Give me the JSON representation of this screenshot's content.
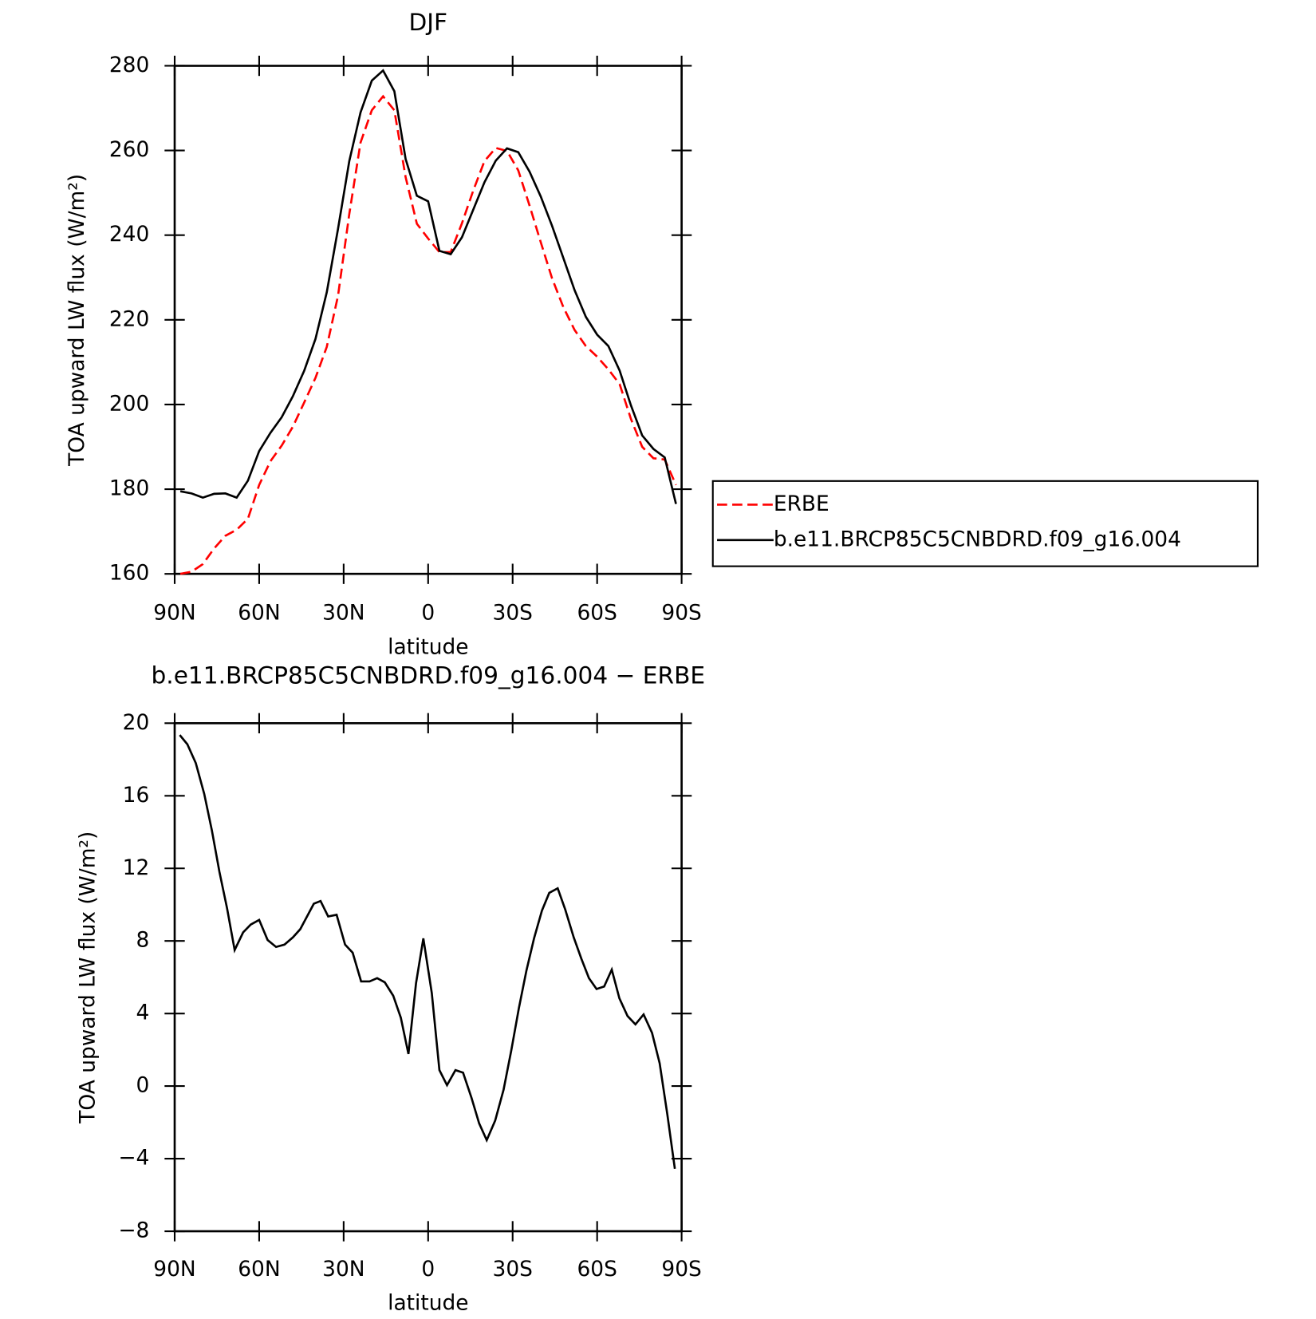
{
  "chart_data": [
    {
      "type": "line",
      "title": "DJF",
      "x_label": "latitude",
      "y_label": "TOA upward LW flux (W/m²)",
      "x": [
        88,
        84,
        80,
        76,
        72,
        68,
        64,
        60,
        56,
        52,
        48,
        44,
        40,
        36,
        32,
        28,
        24,
        20,
        16,
        12,
        8,
        4,
        0,
        -4,
        -8,
        -12,
        -16,
        -20,
        -24,
        -28,
        -32,
        -36,
        -40,
        -44,
        -48,
        -52,
        -56,
        -60,
        -64,
        -68,
        -72,
        -76,
        -80,
        -84,
        -88
      ],
      "series": [
        {
          "name": "ERBE",
          "color": "#ff0000",
          "line_style": "dashed",
          "values": [
            160,
            160.5,
            162.3,
            166,
            169,
            170.4,
            173,
            181,
            186.6,
            190.3,
            194.8,
            200.5,
            206.3,
            213.6,
            225.7,
            245,
            261.9,
            269.5,
            272.8,
            269.5,
            253.7,
            242.7,
            239.2,
            236,
            236,
            242.8,
            250.5,
            257.5,
            260.6,
            259.9,
            255.3,
            247,
            238.3,
            229.8,
            223,
            217.6,
            213.8,
            211.3,
            208.3,
            204.8,
            196.6,
            190,
            187.3,
            187,
            181
          ]
        },
        {
          "name": "b.e11.BRCP85C5CNBDRD.f09_g16.004",
          "color": "#000000",
          "line_style": "solid",
          "values": [
            179.5,
            179,
            178,
            178.9,
            179,
            178,
            182,
            189,
            193.3,
            197,
            202,
            208,
            215.5,
            226.5,
            241.5,
            257.5,
            269,
            276.5,
            278.9,
            274,
            258,
            249.3,
            248,
            236.3,
            235.5,
            239.5,
            246,
            252.5,
            257.6,
            260.5,
            259.6,
            255,
            249.1,
            242.2,
            234.6,
            227,
            220.7,
            216.5,
            213.8,
            208,
            199.8,
            192.7,
            189.5,
            187.5,
            176.5
          ]
        }
      ],
      "xlim": [
        90,
        -90
      ],
      "xticks": [
        {
          "value": 90,
          "label": "90N"
        },
        {
          "value": 60,
          "label": "60N"
        },
        {
          "value": 30,
          "label": "30N"
        },
        0,
        {
          "value": -30,
          "label": "30S"
        },
        {
          "value": -60,
          "label": "60S"
        },
        {
          "value": -90,
          "label": "90S"
        }
      ],
      "ylim": [
        160,
        280
      ],
      "yticks": [
        160,
        180,
        200,
        220,
        240,
        260,
        280
      ],
      "legend": "right"
    },
    {
      "type": "line",
      "title": "b.e11.BRCP85C5CNBDRD.f09_g16.004 − ERBE",
      "x_label": "latitude",
      "y_label": "TOA upward LW flux (W/m²)",
      "x": [
        88.2,
        85.5,
        82.5,
        79.5,
        76.8,
        74.1,
        71.4,
        68.7,
        65.7,
        63,
        60,
        57,
        54,
        51,
        48,
        45.4,
        43,
        40.6,
        38.2,
        35.5,
        32.5,
        29.5,
        26.8,
        23.8,
        20.8,
        18.1,
        15.4,
        12.4,
        9.7,
        7,
        4.3,
        1.7,
        -1.3,
        -4,
        -6.7,
        -9.7,
        -12.4,
        -15.4,
        -18.1,
        -20.8,
        -23.8,
        -26.8,
        -29.5,
        -32.2,
        -34.9,
        -37.6,
        -40.4,
        -43,
        -46,
        -48.7,
        -51.7,
        -54.4,
        -57.1,
        -59.8,
        -62.5,
        -65.2,
        -67.9,
        -70.8,
        -73.6,
        -76.5,
        -79.5,
        -82.2,
        -84.9,
        -87.6
      ],
      "series": [
        {
          "name": "b.e11.BRCP85C5CNBDRD.f09_g16.004 − ERBE",
          "color": "#000000",
          "line_style": "solid",
          "values": [
            19.35,
            18.84,
            17.8,
            16.1,
            14.1,
            11.8,
            9.8,
            7.5,
            8.47,
            8.9,
            9.16,
            8.05,
            7.67,
            7.8,
            8.2,
            8.65,
            9.35,
            10.05,
            10.2,
            9.35,
            9.44,
            7.8,
            7.35,
            5.77,
            5.77,
            5.95,
            5.72,
            4.98,
            3.77,
            1.77,
            5.67,
            8.14,
            5.12,
            0.88,
            0.05,
            0.88,
            0.74,
            -0.65,
            -2.05,
            -2.98,
            -1.9,
            -0.19,
            1.95,
            4.28,
            6.37,
            8.14,
            9.67,
            10.65,
            10.9,
            9.72,
            8.19,
            7.02,
            5.95,
            5.35,
            5.49,
            6.42,
            4.84,
            3.86,
            3.4,
            3.95,
            2.93,
            1.26,
            -1.53,
            -4.56
          ]
        }
      ],
      "xlim": [
        90,
        -90
      ],
      "xticks": [
        {
          "value": 90,
          "label": "90N"
        },
        {
          "value": 60,
          "label": "60N"
        },
        {
          "value": 30,
          "label": "30N"
        },
        0,
        {
          "value": -30,
          "label": "30S"
        },
        {
          "value": -60,
          "label": "60S"
        },
        {
          "value": -90,
          "label": "90S"
        }
      ],
      "ylim": [
        -8,
        20
      ],
      "yticks": [
        {
          "value": -8,
          "label": "−8"
        },
        {
          "value": -4,
          "label": "−4"
        },
        0,
        4,
        8,
        12,
        16,
        20
      ]
    }
  ]
}
